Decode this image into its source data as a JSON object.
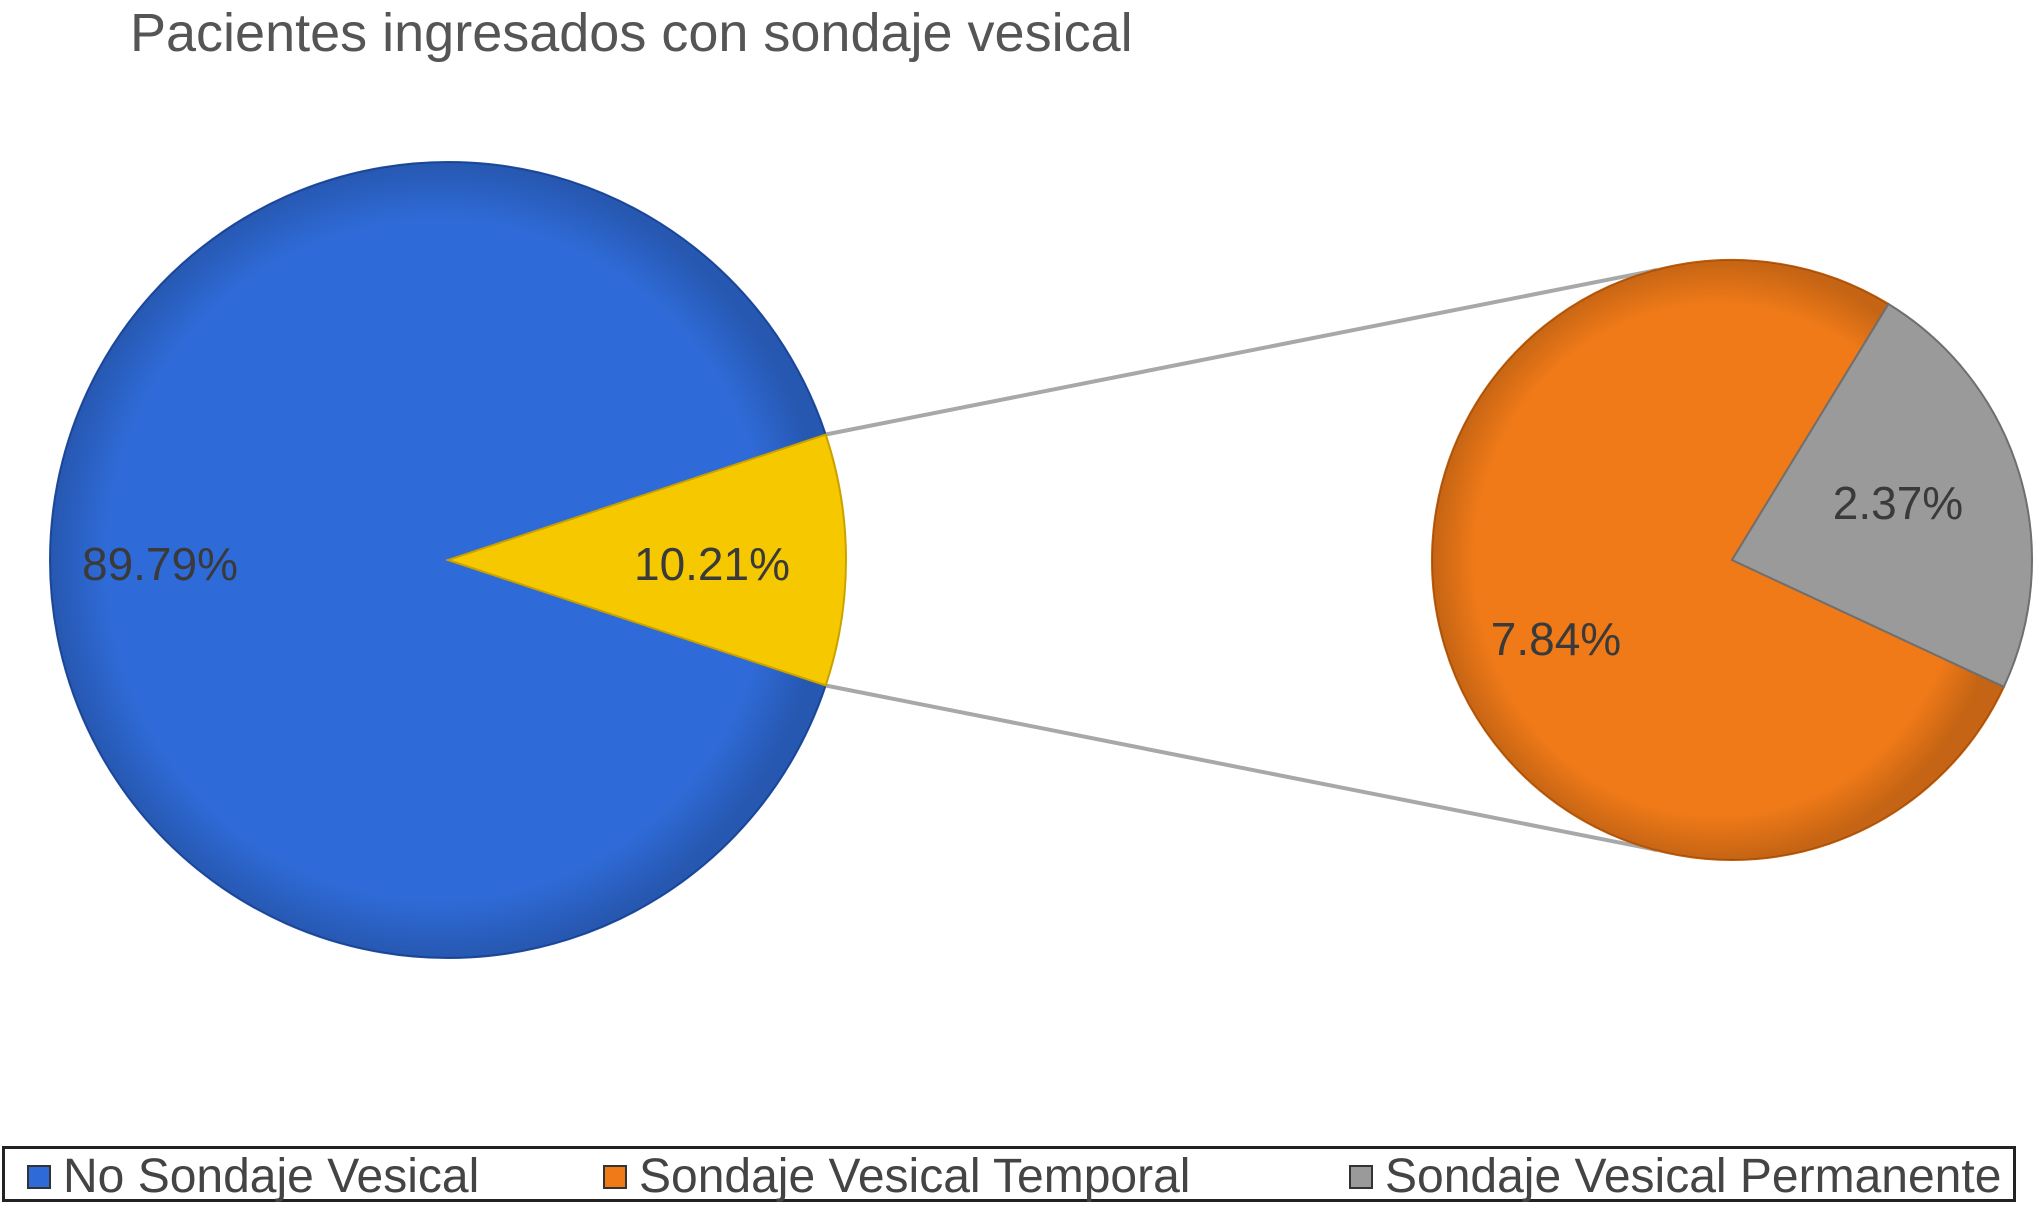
{
  "chart_data": {
    "type": "pie",
    "subtype": "pie-of-pie",
    "title": "Pacientes ingresados con sondaje vesical",
    "main_pie": {
      "slices": [
        {
          "name": "No Sondaje Vesical",
          "value": 89.79,
          "label": "89.79%",
          "color": "#2f6bd8"
        },
        {
          "name": "Sondaje Vesical",
          "value": 10.21,
          "label": "10.21%",
          "color": "#f6c800"
        }
      ]
    },
    "secondary_pie": {
      "slices": [
        {
          "name": "Sondaje Vesical Temporal",
          "value": 7.84,
          "label": "7.84%",
          "color": "#f07a18"
        },
        {
          "name": "Sondaje Vesical Permanente",
          "value": 2.37,
          "label": "2.37%",
          "color": "#9a9a9a"
        }
      ]
    },
    "legend": [
      {
        "label": "No Sondaje Vesical",
        "color": "#2f6bd8"
      },
      {
        "label": "Sondaje Vesical Temporal",
        "color": "#f07a18"
      },
      {
        "label": "Sondaje Vesical Permanente",
        "color": "#9a9a9a"
      }
    ],
    "legend_position": "bottom"
  }
}
